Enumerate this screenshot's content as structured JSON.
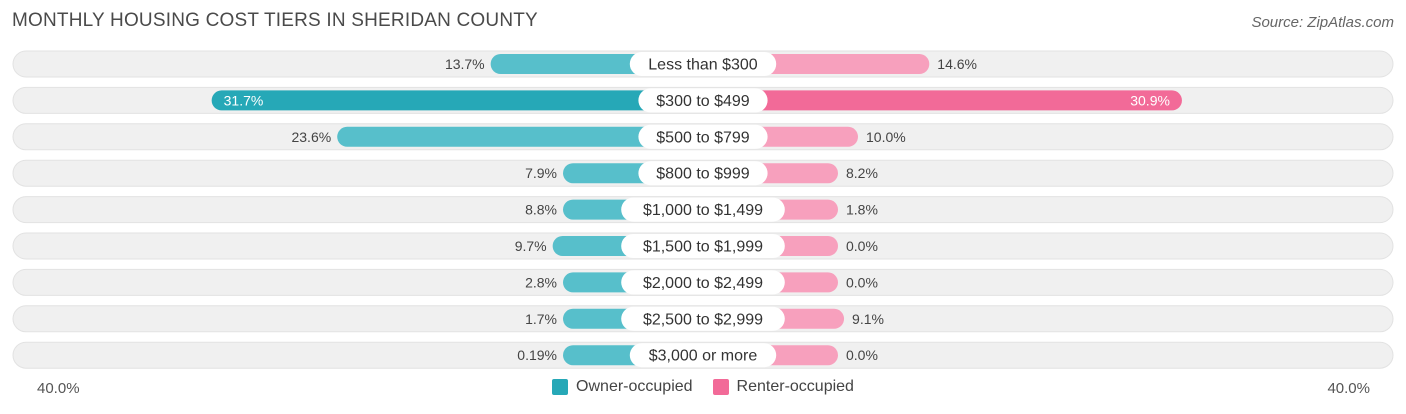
{
  "title": "MONTHLY HOUSING COST TIERS IN SHERIDAN COUNTY",
  "source": "Source: ZipAtlas.com",
  "colors": {
    "owner": "#57bfcb",
    "owner_strong": "#26a8b7",
    "renter": "#f7a0bd",
    "renter_strong": "#f26a98",
    "track": "#f0f0f0"
  },
  "axis": {
    "left_label": "40.0%",
    "right_label": "40.0%"
  },
  "legend": {
    "owner": "Owner-occupied",
    "renter": "Renter-occupied"
  },
  "chart_data": {
    "type": "bar",
    "orientation": "horizontal-diverging",
    "title": "MONTHLY HOUSING COST TIERS IN SHERIDAN COUNTY",
    "xlim": [
      -40,
      40
    ],
    "categories": [
      "Less than $300",
      "$300 to $499",
      "$500 to $799",
      "$800 to $999",
      "$1,000 to $1,499",
      "$1,500 to $1,999",
      "$2,000 to $2,499",
      "$2,500 to $2,999",
      "$3,000 or more"
    ],
    "series": [
      {
        "name": "Owner-occupied",
        "values": [
          13.7,
          31.7,
          23.6,
          7.9,
          8.8,
          9.7,
          2.8,
          1.7,
          0.19
        ],
        "labels": [
          "13.7%",
          "31.7%",
          "23.6%",
          "7.9%",
          "8.8%",
          "9.7%",
          "2.8%",
          "1.7%",
          "0.19%"
        ]
      },
      {
        "name": "Renter-occupied",
        "values": [
          14.6,
          30.9,
          10.0,
          8.2,
          1.8,
          0.0,
          0.0,
          9.1,
          0.0
        ],
        "labels": [
          "14.6%",
          "30.9%",
          "10.0%",
          "8.2%",
          "1.8%",
          "0.0%",
          "0.0%",
          "9.1%",
          "0.0%"
        ]
      }
    ]
  }
}
